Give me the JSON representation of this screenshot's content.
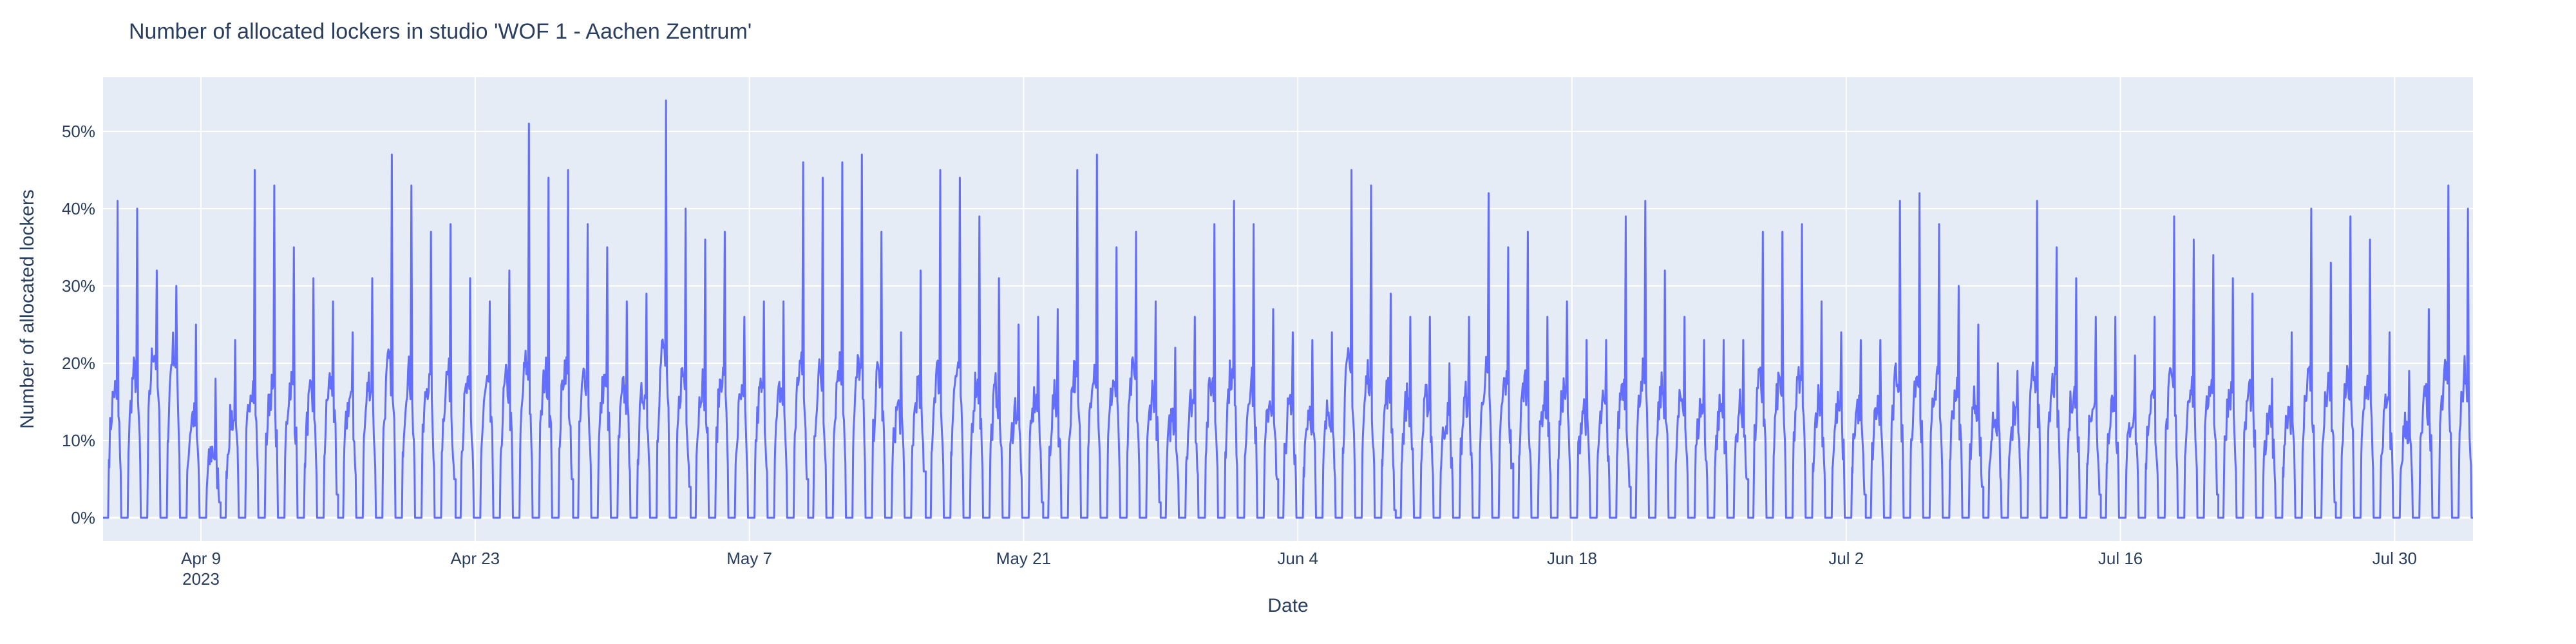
{
  "chart_data": {
    "type": "line",
    "title": "Number of allocated lockers in studio 'WOF 1 - Aachen Zentrum'",
    "xlabel": "Date",
    "ylabel": "Number of allocated lockers",
    "x_range": [
      "2023-04-04",
      "2023-08-03"
    ],
    "y_range": [
      -0.03,
      0.57
    ],
    "grid": true,
    "legend": "none",
    "colors": {
      "plot_bg": "#e5ecf6",
      "grid": "#ffffff",
      "line": "#636efa",
      "text": "#2a3f5f"
    },
    "x_ticks": [
      {
        "date": "2023-04-09",
        "label": "Apr 9",
        "sublabel": "2023"
      },
      {
        "date": "2023-04-23",
        "label": "Apr 23",
        "sublabel": ""
      },
      {
        "date": "2023-05-07",
        "label": "May 7",
        "sublabel": ""
      },
      {
        "date": "2023-05-21",
        "label": "May 21",
        "sublabel": ""
      },
      {
        "date": "2023-06-04",
        "label": "Jun 4",
        "sublabel": ""
      },
      {
        "date": "2023-06-18",
        "label": "Jun 18",
        "sublabel": ""
      },
      {
        "date": "2023-07-02",
        "label": "Jul 2",
        "sublabel": ""
      },
      {
        "date": "2023-07-16",
        "label": "Jul 16",
        "sublabel": ""
      },
      {
        "date": "2023-07-30",
        "label": "Jul 30",
        "sublabel": ""
      }
    ],
    "y_ticks": [
      {
        "value": 0.0,
        "label": "0%"
      },
      {
        "value": 0.1,
        "label": "10%"
      },
      {
        "value": 0.2,
        "label": "20%"
      },
      {
        "value": 0.3,
        "label": "30%"
      },
      {
        "value": 0.4,
        "label": "40%"
      },
      {
        "value": 0.5,
        "label": "50%"
      }
    ],
    "series": [
      {
        "x_start": "2023-04-04",
        "daily_peaks": [
          0.41,
          0.4,
          0.32,
          0.3,
          0.25,
          0.18,
          0.23,
          0.45,
          0.43,
          0.35,
          0.31,
          0.28,
          0.24,
          0.31,
          0.47,
          0.43,
          0.37,
          0.38,
          0.31,
          0.28,
          0.32,
          0.51,
          0.44,
          0.45,
          0.38,
          0.35,
          0.28,
          0.29,
          0.54,
          0.4,
          0.36,
          0.37,
          0.26,
          0.28,
          0.28,
          0.46,
          0.44,
          0.46,
          0.47,
          0.37,
          0.24,
          0.32,
          0.45,
          0.44,
          0.39,
          0.31,
          0.25,
          0.26,
          0.27,
          0.45,
          0.47,
          0.35,
          0.37,
          0.28,
          0.22,
          0.26,
          0.38,
          0.41,
          0.38,
          0.27,
          0.24,
          0.23,
          0.24,
          0.45,
          0.43,
          0.29,
          0.26,
          0.26,
          0.2,
          0.26,
          0.42,
          0.35,
          0.37,
          0.26,
          0.28,
          0.23,
          0.23,
          0.39,
          0.41,
          0.32,
          0.26,
          0.23,
          0.23,
          0.23,
          0.37,
          0.37,
          0.38,
          0.28,
          0.24,
          0.23,
          0.23,
          0.41,
          0.42,
          0.38,
          0.3,
          0.25,
          0.2,
          0.19,
          0.41,
          0.35,
          0.31,
          0.26,
          0.26,
          0.21,
          0.26,
          0.39,
          0.36,
          0.34,
          0.31,
          0.29,
          0.18,
          0.24,
          0.4,
          0.33,
          0.39,
          0.36,
          0.24,
          0.19,
          0.27,
          0.43,
          0.4,
          0.16
        ],
        "daily_mids": [
          0.15,
          0.17,
          0.2,
          0.2,
          0.12,
          0.08,
          0.12,
          0.16,
          0.15,
          0.16,
          0.14,
          0.16,
          0.14,
          0.16,
          0.18,
          0.17,
          0.16,
          0.17,
          0.15,
          0.15,
          0.16,
          0.18,
          0.17,
          0.18,
          0.17,
          0.16,
          0.15,
          0.15,
          0.2,
          0.17,
          0.16,
          0.17,
          0.14,
          0.15,
          0.15,
          0.18,
          0.17,
          0.18,
          0.18,
          0.17,
          0.13,
          0.15,
          0.17,
          0.17,
          0.16,
          0.15,
          0.13,
          0.14,
          0.14,
          0.17,
          0.18,
          0.16,
          0.17,
          0.15,
          0.12,
          0.14,
          0.16,
          0.17,
          0.16,
          0.14,
          0.13,
          0.13,
          0.13,
          0.18,
          0.17,
          0.15,
          0.14,
          0.14,
          0.12,
          0.14,
          0.17,
          0.16,
          0.16,
          0.14,
          0.15,
          0.13,
          0.13,
          0.16,
          0.17,
          0.15,
          0.14,
          0.13,
          0.13,
          0.13,
          0.16,
          0.16,
          0.16,
          0.14,
          0.13,
          0.13,
          0.13,
          0.17,
          0.17,
          0.16,
          0.15,
          0.14,
          0.12,
          0.12,
          0.17,
          0.16,
          0.15,
          0.14,
          0.14,
          0.12,
          0.14,
          0.16,
          0.16,
          0.16,
          0.15,
          0.15,
          0.11,
          0.13,
          0.17,
          0.15,
          0.16,
          0.16,
          0.13,
          0.11,
          0.14,
          0.17,
          0.17,
          0.1
        ],
        "night_baseline": 0.0,
        "closed_day_floor": [
          0.02,
          0.03,
          0.05,
          0.05,
          0.04,
          0.05,
          0.06,
          0.02,
          0.02,
          0.05,
          0.01,
          0.07,
          0.04,
          0.05,
          0.03,
          0.04,
          0.03,
          0.03,
          0.02
        ]
      }
    ]
  }
}
